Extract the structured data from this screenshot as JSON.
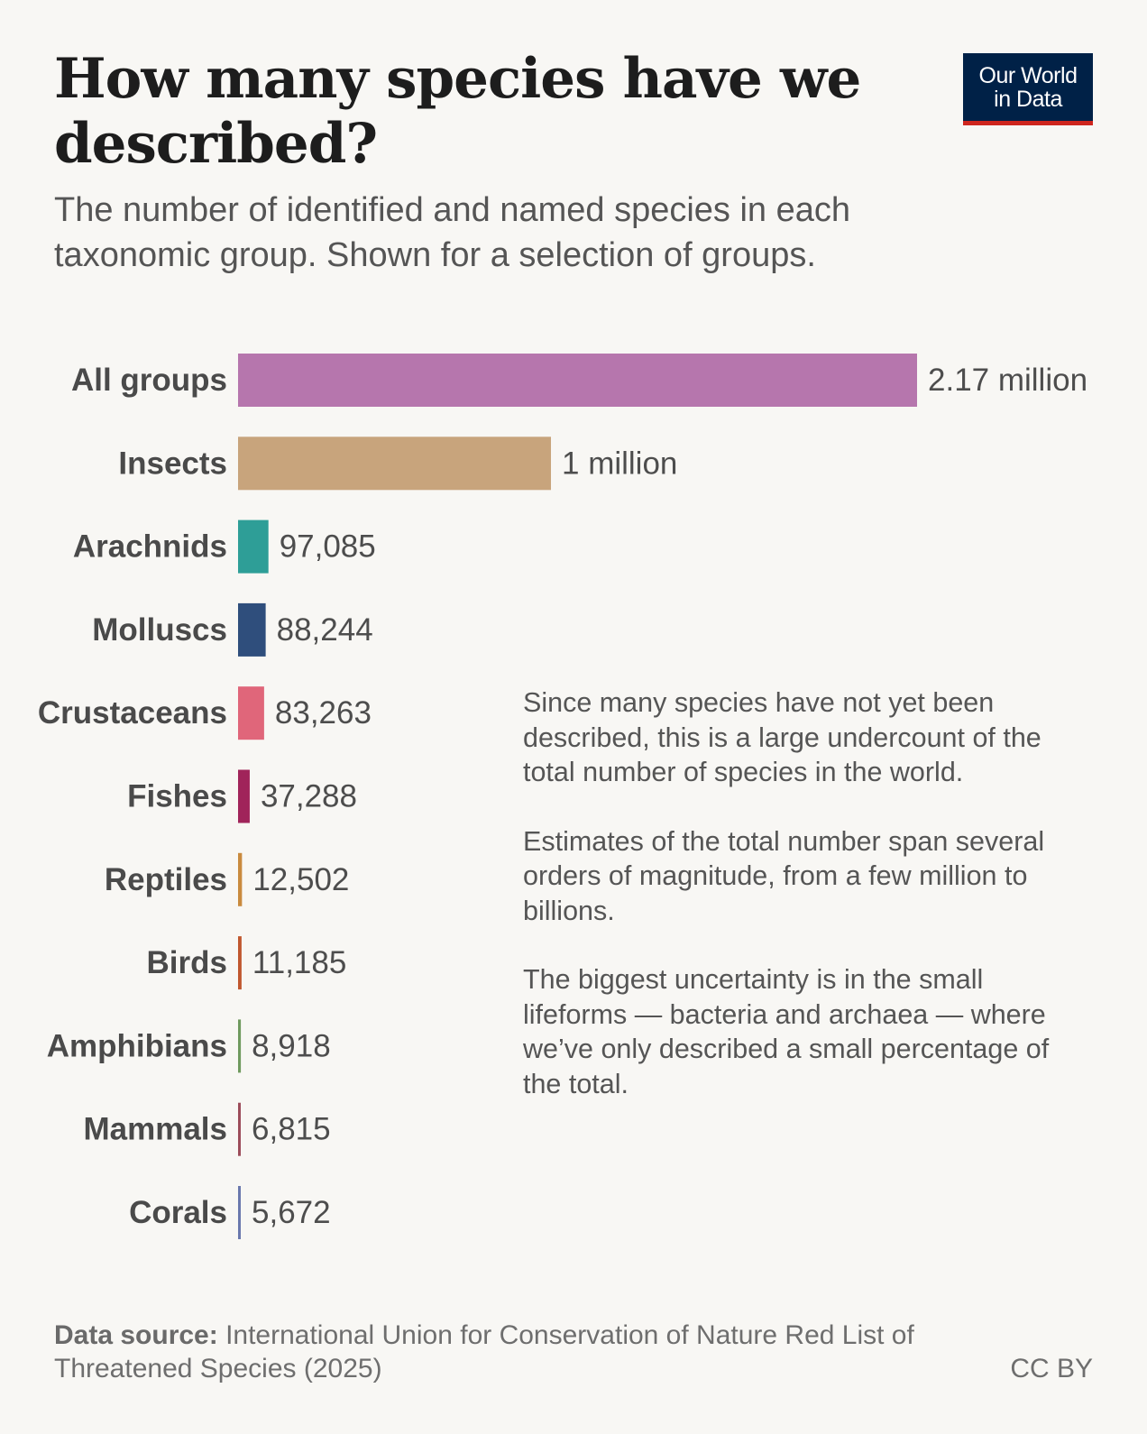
{
  "header": {
    "title": "How many species have we described?",
    "subtitle": "The number of identified and named species in each taxonomic group. Shown for a selection of groups.",
    "logo_line1": "Our World",
    "logo_line2": "in Data"
  },
  "chart_data": {
    "type": "bar",
    "orientation": "horizontal",
    "categories": [
      "All groups",
      "Insects",
      "Arachnids",
      "Molluscs",
      "Crustaceans",
      "Fishes",
      "Reptiles",
      "Birds",
      "Amphibians",
      "Mammals",
      "Corals"
    ],
    "values": [
      2170000,
      1000000,
      97085,
      88244,
      83263,
      37288,
      12502,
      11185,
      8918,
      6815,
      5672
    ],
    "value_labels": [
      "2.17 million",
      "1 million",
      "97,085",
      "88,244",
      "83,263",
      "37,288",
      "12,502",
      "11,185",
      "8,918",
      "6,815",
      "5,672"
    ],
    "colors": [
      "#b676ad",
      "#c8a47c",
      "#2e9e97",
      "#2f4e7c",
      "#e0667a",
      "#a0245a",
      "#c98a3e",
      "#c0572e",
      "#6f9a5e",
      "#9c4c5a",
      "#6a78ad"
    ],
    "title": "How many species have we described?",
    "grid": false
  },
  "annotation": {
    "paragraphs": [
      "Since many species have not yet been described, this is a large undercount of the total number of species in the world.",
      "Estimates of the total number span several orders of magnitude, from a few million to billions.",
      "The biggest uncertainty is in the small lifeforms — bacteria and archaea — where we’ve only described a small percentage of the total."
    ]
  },
  "footer": {
    "source_label": "Data source:",
    "source_text": " International Union for Conservation of Nature Red List of Threatened Species (2025)",
    "license": "CC BY"
  }
}
